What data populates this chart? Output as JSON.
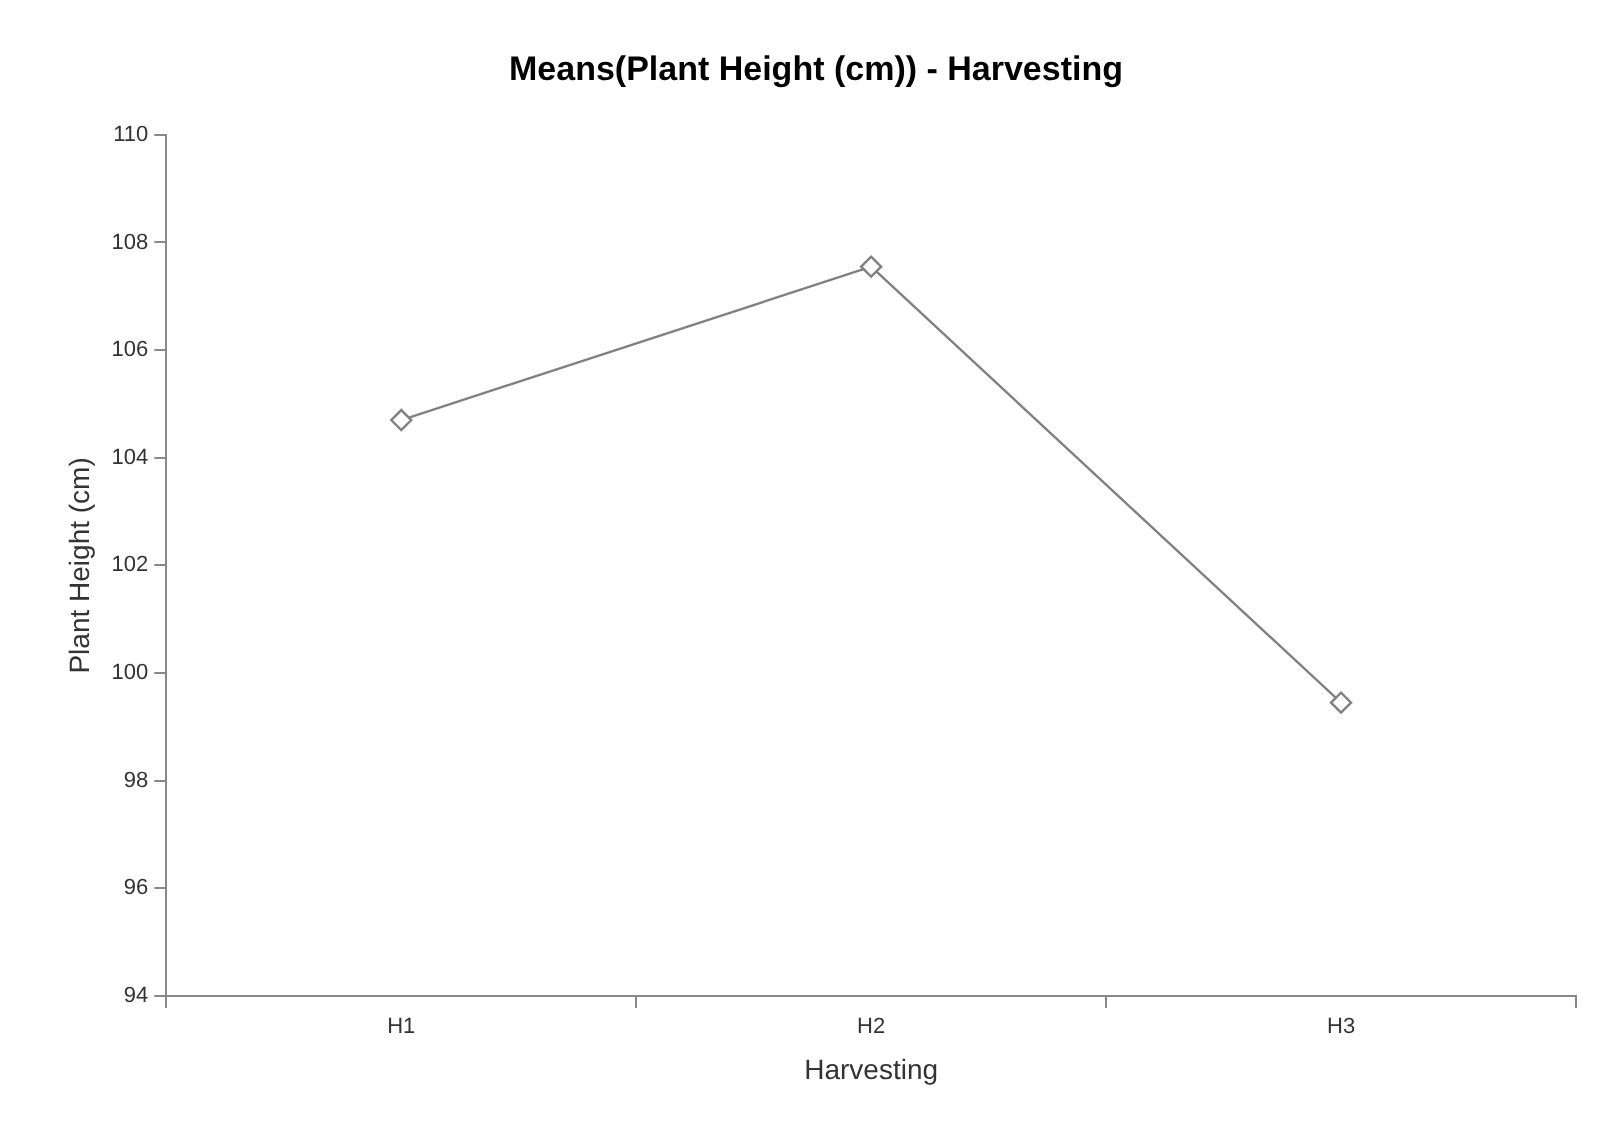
{
  "chart_data": {
    "type": "line",
    "title": "Means(Plant Height (cm)) - Harvesting",
    "xlabel": "Harvesting",
    "ylabel": "Plant Height (cm)",
    "categories": [
      "H1",
      "H2",
      "H3"
    ],
    "series": [
      {
        "color": "#808080",
        "values": [
          104.7,
          107.55,
          99.45
        ]
      }
    ],
    "ylim": [
      94,
      110
    ],
    "yticks": [
      94,
      96,
      98,
      100,
      102,
      104,
      106,
      108,
      110
    ],
    "grid": false,
    "legend": false,
    "marker": "diamond",
    "line_style": "solid"
  }
}
